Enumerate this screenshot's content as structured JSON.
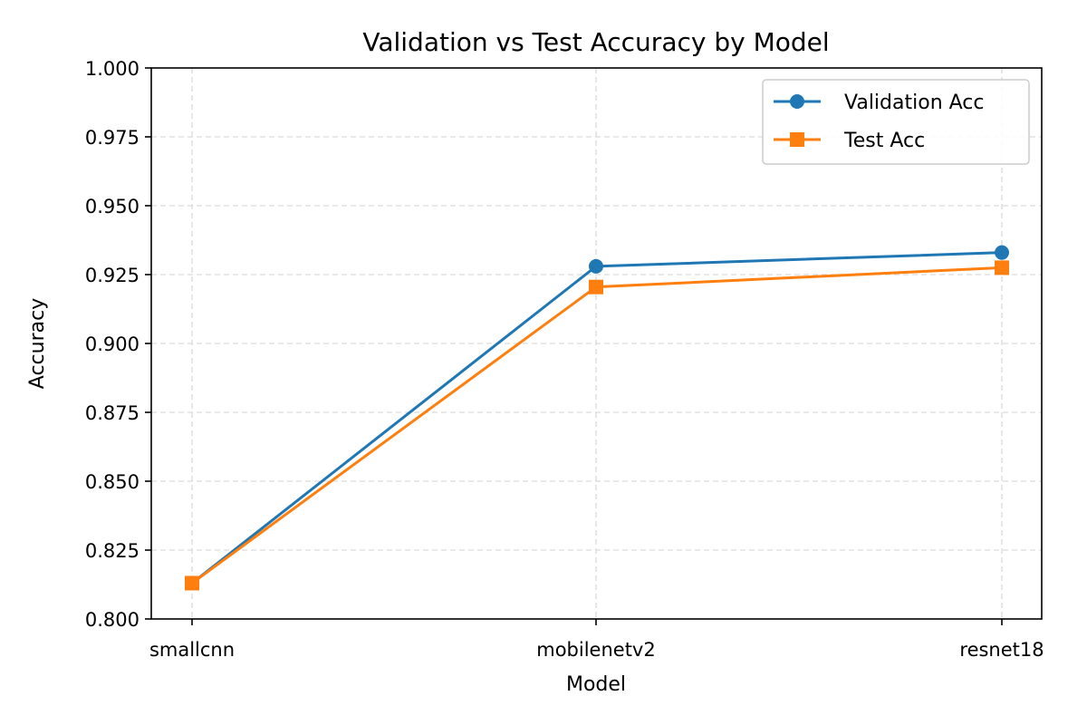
{
  "chart_data": {
    "type": "line",
    "title": "Validation vs Test Accuracy by Model",
    "xlabel": "Model",
    "ylabel": "Accuracy",
    "categories": [
      "smallcnn",
      "mobilenetv2",
      "resnet18"
    ],
    "ylim": [
      0.8,
      1.0
    ],
    "yticks": [
      0.8,
      0.825,
      0.85,
      0.875,
      0.9,
      0.925,
      0.95,
      0.975,
      1.0
    ],
    "ytick_labels": [
      "0.800",
      "0.825",
      "0.850",
      "0.875",
      "0.900",
      "0.925",
      "0.950",
      "0.975",
      "1.000"
    ],
    "grid": true,
    "legend_position": "top-right",
    "series": [
      {
        "name": "Validation Acc",
        "values": [
          0.813,
          0.928,
          0.933
        ],
        "color": "#1f77b4",
        "marker": "circle"
      },
      {
        "name": "Test Acc",
        "values": [
          0.813,
          0.9205,
          0.9275
        ],
        "color": "#ff7f0e",
        "marker": "square"
      }
    ]
  }
}
